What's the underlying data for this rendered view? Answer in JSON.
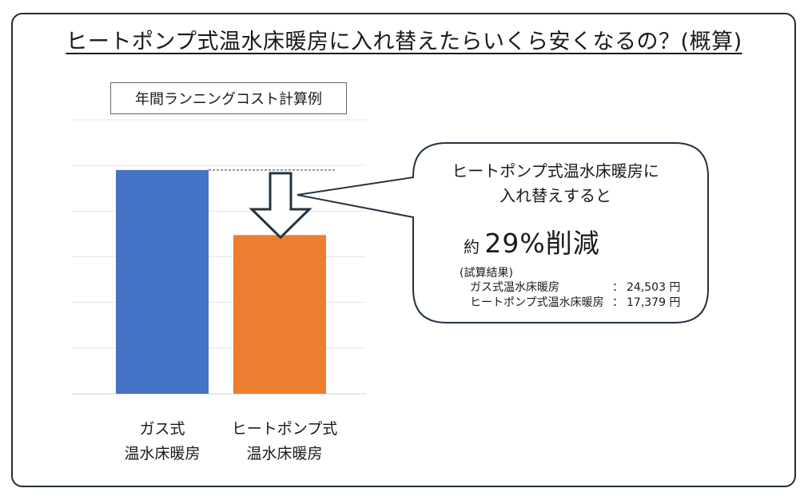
{
  "title": "ヒートポンプ式温水床暖房に入れ替えたらいくら安くなるの？(概算)",
  "chart_data": {
    "type": "bar",
    "title": "年間ランニングコスト計算例",
    "categories": [
      "ガス式\n温水床暖房",
      "ヒートポンプ式\n温水床暖房"
    ],
    "category_lines": [
      [
        "ガス式",
        "温水床暖房"
      ],
      [
        "ヒートポンプ式",
        "温水床暖房"
      ]
    ],
    "values": [
      24503,
      17379
    ],
    "colors": [
      "#4472C4",
      "#ED7D31"
    ],
    "ylim": [
      0,
      30000
    ],
    "grid": true,
    "annotation": "down-arrow from gas cost level to heat-pump bar"
  },
  "callout": {
    "line1": "ヒートポンプ式温水床暖房に",
    "line2": "入れ替えすると",
    "prefix": "約",
    "reduction": "29%削減",
    "results_heading": "(試算結果)",
    "results": [
      {
        "name": "ガス式温水床暖房",
        "colon": "：",
        "value": "24,503 円"
      },
      {
        "name": "ヒートポンプ式温水床暖房",
        "colon": "：",
        "value": "17,379 円"
      }
    ]
  }
}
